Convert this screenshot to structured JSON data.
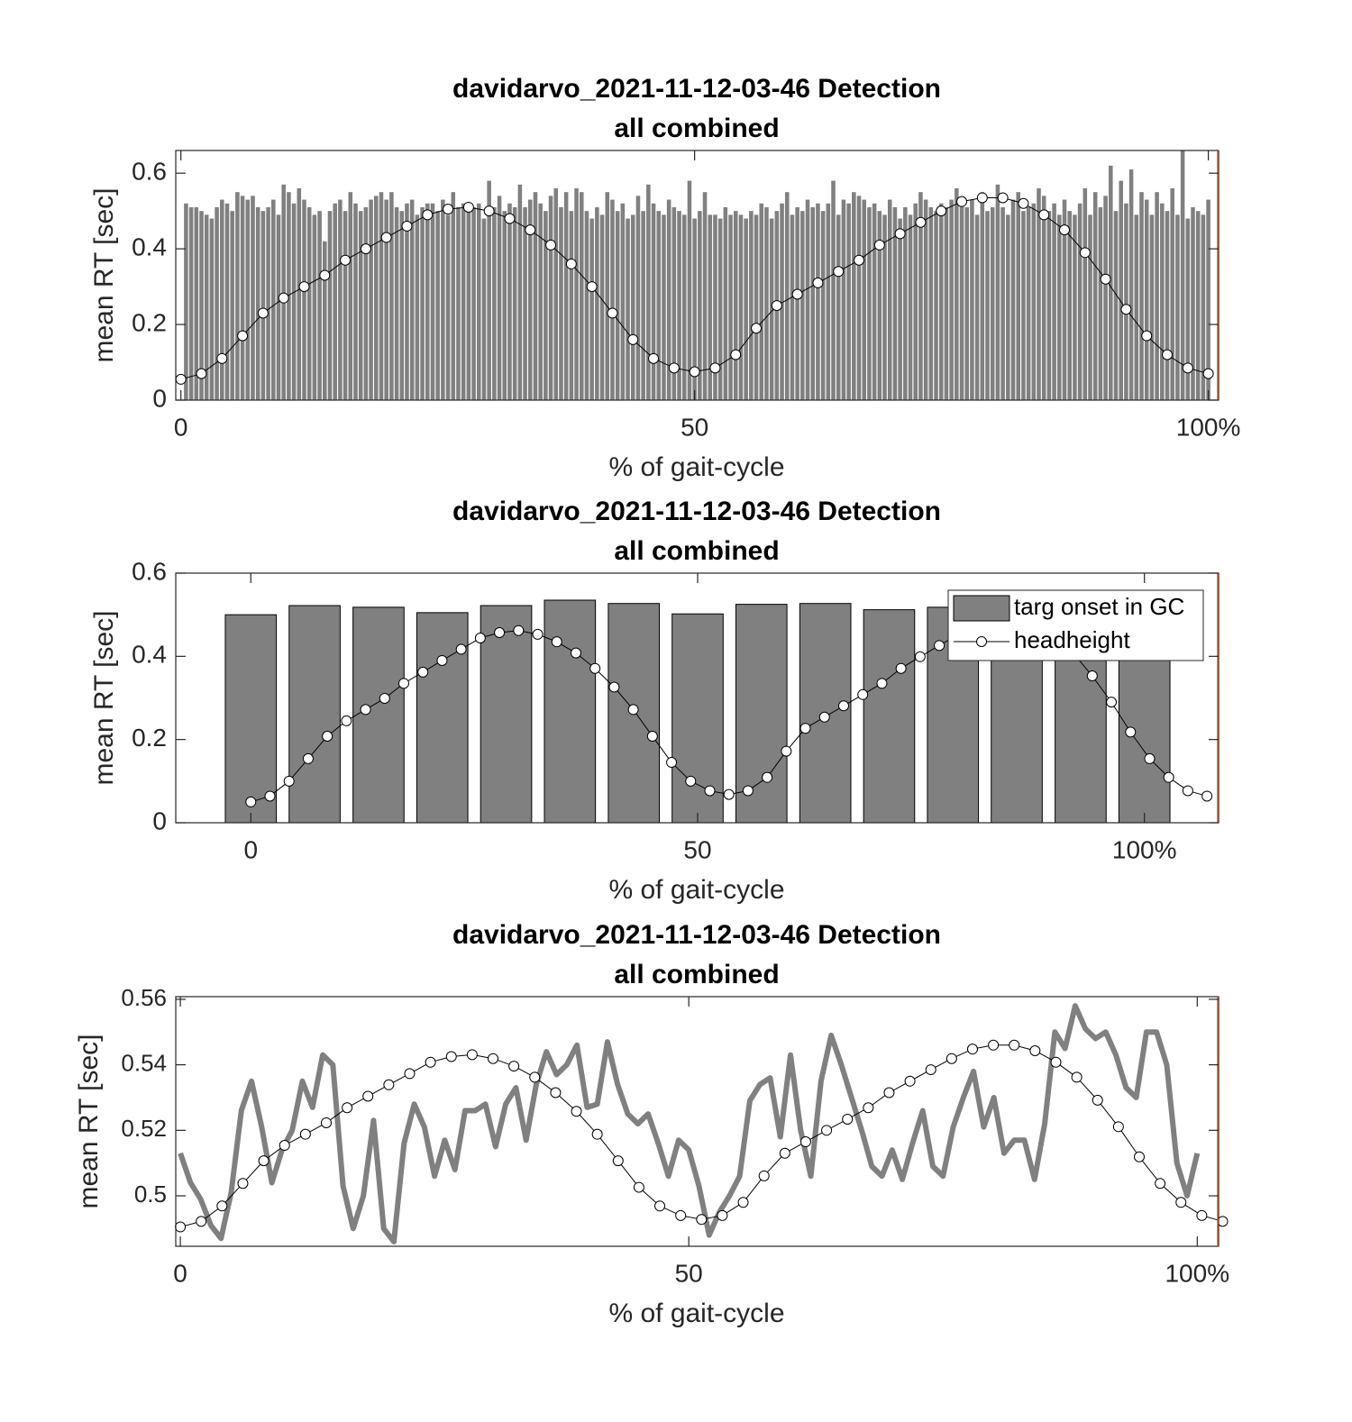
{
  "chart_data": [
    {
      "type": "bar",
      "title": [
        "davidarvo_2021-11-12-03-46 Detection",
        "all combined"
      ],
      "xlabel": "% of gait-cycle",
      "ylabel": "mean RT [sec]",
      "xlim": [
        -0.5,
        101
      ],
      "ylim": [
        0,
        0.66
      ],
      "xticks": [
        0,
        50,
        {
          "value": 100,
          "label": "100%"
        }
      ],
      "yticks": [
        0,
        0.2,
        0.4,
        0.6
      ],
      "series": [
        {
          "type": "bar",
          "color": "#808080",
          "x": [
            0.5,
            1,
            1.5,
            2,
            2.5,
            3,
            3.5,
            4,
            4.5,
            5,
            5.5,
            6,
            6.5,
            7,
            7.5,
            8,
            8.5,
            9,
            9.5,
            10,
            10.5,
            11,
            11.5,
            12,
            12.5,
            13,
            13.5,
            14,
            14.5,
            15,
            15.5,
            16,
            16.5,
            17,
            17.5,
            18,
            18.5,
            19,
            19.5,
            20,
            20.5,
            21,
            21.5,
            22,
            22.5,
            23,
            23.5,
            24,
            24.5,
            25,
            25.5,
            26,
            26.5,
            27,
            27.5,
            28,
            28.5,
            29,
            29.5,
            30,
            30.5,
            31,
            31.5,
            32,
            32.5,
            33,
            33.5,
            34,
            34.5,
            35,
            35.5,
            36,
            36.5,
            37,
            37.5,
            38,
            38.5,
            39,
            39.5,
            40,
            40.5,
            41,
            41.5,
            42,
            42.5,
            43,
            43.5,
            44,
            44.5,
            45,
            45.5,
            46,
            46.5,
            47,
            47.5,
            48,
            48.5,
            49,
            49.5,
            50,
            50.5,
            51,
            51.5,
            52,
            52.5,
            53,
            53.5,
            54,
            54.5,
            55,
            55.5,
            56,
            56.5,
            57,
            57.5,
            58,
            58.5,
            59,
            59.5,
            60,
            60.5,
            61,
            61.5,
            62,
            62.5,
            63,
            63.5,
            64,
            64.5,
            65,
            65.5,
            66,
            66.5,
            67,
            67.5,
            68,
            68.5,
            69,
            69.5,
            70,
            70.5,
            71,
            71.5,
            72,
            72.5,
            73,
            73.5,
            74,
            74.5,
            75,
            75.5,
            76,
            76.5,
            77,
            77.5,
            78,
            78.5,
            79,
            79.5,
            80,
            80.5,
            81,
            81.5,
            82,
            82.5,
            83,
            83.5,
            84,
            84.5,
            85,
            85.5,
            86,
            86.5,
            87,
            87.5,
            88,
            88.5,
            89,
            89.5,
            90,
            90.5,
            91,
            91.5,
            92,
            92.5,
            93,
            93.5,
            94,
            94.5,
            95,
            95.5,
            96,
            96.5,
            97,
            97.5,
            98,
            98.5,
            99,
            99.5,
            100
          ],
          "values": [
            0.52,
            0.51,
            0.51,
            0.5,
            0.49,
            0.48,
            0.51,
            0.53,
            0.52,
            0.5,
            0.55,
            0.54,
            0.53,
            0.54,
            0.51,
            0.5,
            0.51,
            0.53,
            0.49,
            0.57,
            0.55,
            0.52,
            0.56,
            0.53,
            0.51,
            0.49,
            0.5,
            0.42,
            0.5,
            0.52,
            0.53,
            0.5,
            0.55,
            0.52,
            0.5,
            0.51,
            0.53,
            0.54,
            0.55,
            0.53,
            0.55,
            0.51,
            0.5,
            0.52,
            0.53,
            0.49,
            0.51,
            0.52,
            0.52,
            0.5,
            0.53,
            0.49,
            0.55,
            0.51,
            0.52,
            0.5,
            0.51,
            0.52,
            0.48,
            0.58,
            0.51,
            0.54,
            0.5,
            0.52,
            0.51,
            0.57,
            0.51,
            0.53,
            0.55,
            0.52,
            0.5,
            0.54,
            0.56,
            0.51,
            0.55,
            0.5,
            0.56,
            0.55,
            0.5,
            0.48,
            0.51,
            0.49,
            0.55,
            0.53,
            0.5,
            0.52,
            0.48,
            0.49,
            0.54,
            0.5,
            0.57,
            0.52,
            0.5,
            0.49,
            0.53,
            0.51,
            0.5,
            0.49,
            0.58,
            0.48,
            0.5,
            0.55,
            0.49,
            0.49,
            0.48,
            0.51,
            0.49,
            0.5,
            0.49,
            0.48,
            0.5,
            0.49,
            0.52,
            0.51,
            0.48,
            0.5,
            0.52,
            0.55,
            0.49,
            0.51,
            0.5,
            0.53,
            0.51,
            0.52,
            0.5,
            0.52,
            0.58,
            0.49,
            0.53,
            0.52,
            0.55,
            0.54,
            0.53,
            0.51,
            0.52,
            0.5,
            0.49,
            0.53,
            0.51,
            0.48,
            0.51,
            0.49,
            0.52,
            0.55,
            0.53,
            0.51,
            0.5,
            0.52,
            0.51,
            0.53,
            0.56,
            0.52,
            0.51,
            0.53,
            0.49,
            0.55,
            0.5,
            0.51,
            0.57,
            0.51,
            0.49,
            0.53,
            0.55,
            0.5,
            0.51,
            0.52,
            0.56,
            0.54,
            0.5,
            0.52,
            0.49,
            0.53,
            0.5,
            0.49,
            0.52,
            0.56,
            0.49,
            0.55,
            0.51,
            0.54,
            0.62,
            0.5,
            0.58,
            0.52,
            0.61,
            0.49,
            0.55,
            0.53,
            0.49,
            0.55,
            0.52,
            0.5,
            0.56,
            0.49,
            0.66,
            0.48,
            0.51,
            0.5,
            0.49,
            0.53
          ]
        },
        {
          "type": "line",
          "color": "#000000",
          "marker": "o",
          "markerfacecolor": "#ffffff",
          "x": [
            0,
            2,
            4,
            6,
            8,
            10,
            12,
            14,
            16,
            18,
            20,
            22,
            24,
            26,
            28,
            30,
            32,
            34,
            36,
            38,
            40,
            42,
            44,
            46,
            48,
            50,
            52,
            54,
            56,
            58,
            60,
            62,
            64,
            66,
            68,
            70,
            72,
            74,
            76,
            78,
            80,
            82,
            84,
            86,
            88,
            90,
            92,
            94,
            96,
            98,
            100
          ],
          "values": [
            0.055,
            0.07,
            0.11,
            0.17,
            0.23,
            0.27,
            0.3,
            0.33,
            0.37,
            0.4,
            0.43,
            0.46,
            0.49,
            0.505,
            0.51,
            0.5,
            0.48,
            0.45,
            0.41,
            0.36,
            0.3,
            0.23,
            0.16,
            0.11,
            0.085,
            0.075,
            0.085,
            0.12,
            0.19,
            0.25,
            0.28,
            0.31,
            0.34,
            0.37,
            0.41,
            0.44,
            0.47,
            0.5,
            0.525,
            0.535,
            0.535,
            0.52,
            0.49,
            0.45,
            0.39,
            0.32,
            0.24,
            0.17,
            0.12,
            0.085,
            0.07
          ]
        }
      ]
    },
    {
      "type": "bar",
      "title": [
        "davidarvo_2021-11-12-03-46 Detection",
        "all combined"
      ],
      "xlabel": "% of gait-cycle",
      "ylabel": "mean RT [sec]",
      "xlim": [
        -8.4,
        108.3
      ],
      "ylim": [
        0,
        0.6
      ],
      "xticks": [
        0,
        50,
        {
          "value": 100,
          "label": "100%"
        }
      ],
      "yticks": [
        0,
        0.2,
        0.4,
        0.6
      ],
      "legend": "northeast",
      "series": [
        {
          "name": "targ onset in GC",
          "type": "bar",
          "color": "#808080",
          "edgecolor": "#000000",
          "x": [
            0,
            7.14,
            14.29,
            21.43,
            28.57,
            35.71,
            42.86,
            50,
            57.14,
            64.29,
            71.43,
            78.57,
            85.71,
            92.86,
            100
          ],
          "values": [
            0.5,
            0.522,
            0.518,
            0.505,
            0.522,
            0.535,
            0.527,
            0.502,
            0.525,
            0.527,
            0.512,
            0.518,
            0.52,
            0.52,
            0.51
          ]
        },
        {
          "name": "headheight",
          "type": "line",
          "color": "#000000",
          "marker": "o",
          "markerfacecolor": "#ffffff",
          "x": [
            0,
            2.14,
            4.28,
            6.42,
            8.56,
            10.7,
            12.84,
            14.98,
            17.12,
            19.26,
            21.4,
            23.54,
            25.68,
            27.82,
            29.96,
            32.1,
            34.24,
            36.38,
            38.52,
            40.66,
            42.8,
            44.94,
            47.08,
            49.22,
            51.36,
            53.5,
            55.64,
            57.78,
            59.92,
            62.06,
            64.2,
            66.34,
            68.48,
            70.62,
            72.76,
            74.9,
            77.04,
            79.18,
            81.32,
            83.46,
            85.6,
            87.74,
            89.88,
            92.02,
            94.16,
            96.3,
            98.44,
            100.58,
            102.72,
            104.86,
            107
          ],
          "values": [
            0.05,
            0.064,
            0.1,
            0.154,
            0.208,
            0.245,
            0.272,
            0.299,
            0.335,
            0.362,
            0.39,
            0.417,
            0.444,
            0.457,
            0.462,
            0.453,
            0.435,
            0.408,
            0.371,
            0.326,
            0.272,
            0.208,
            0.145,
            0.1,
            0.077,
            0.068,
            0.077,
            0.109,
            0.172,
            0.227,
            0.254,
            0.281,
            0.308,
            0.335,
            0.371,
            0.399,
            0.426,
            0.453,
            0.476,
            0.485,
            0.485,
            0.471,
            0.444,
            0.408,
            0.353,
            0.29,
            0.218,
            0.154,
            0.109,
            0.077,
            0.064
          ]
        }
      ]
    },
    {
      "type": "line",
      "title": [
        "davidarvo_2021-11-12-03-46 Detection",
        "all combined"
      ],
      "xlabel": "% of gait-cycle",
      "ylabel": "mean RT [sec]",
      "xlim": [
        -0.45,
        102.1
      ],
      "ylim": [
        0.4846,
        0.5608
      ],
      "xticks": [
        0,
        50,
        {
          "value": 100,
          "label": "100%"
        }
      ],
      "yticks": [
        0.5,
        0.52,
        0.54,
        0.56
      ],
      "series": [
        {
          "type": "line",
          "color": "#808080",
          "linewidth": 6,
          "x": [
            0,
            1,
            2,
            3,
            4,
            5,
            6,
            7,
            8,
            9,
            10,
            11,
            12,
            13,
            14,
            15,
            16,
            17,
            18,
            19,
            20,
            21,
            22,
            23,
            24,
            25,
            26,
            27,
            28,
            29,
            30,
            31,
            32,
            33,
            34,
            35,
            36,
            37,
            38,
            39,
            40,
            41,
            42,
            43,
            44,
            45,
            46,
            47,
            48,
            49,
            50,
            51,
            52,
            53,
            54,
            55,
            56,
            57,
            58,
            59,
            60,
            61,
            62,
            63,
            64,
            65,
            66,
            67,
            68,
            69,
            70,
            71,
            72,
            73,
            74,
            75,
            76,
            77,
            78,
            79,
            80,
            81,
            82,
            83,
            84,
            85,
            86,
            87,
            88,
            89,
            90,
            91,
            92,
            93,
            94,
            95,
            96,
            97,
            98,
            99,
            100
          ],
          "values": [
            0.513,
            0.504,
            0.499,
            0.491,
            0.487,
            0.501,
            0.526,
            0.535,
            0.521,
            0.504,
            0.514,
            0.52,
            0.535,
            0.527,
            0.543,
            0.54,
            0.503,
            0.49,
            0.5,
            0.523,
            0.49,
            0.486,
            0.516,
            0.528,
            0.521,
            0.506,
            0.517,
            0.508,
            0.526,
            0.526,
            0.528,
            0.515,
            0.528,
            0.533,
            0.517,
            0.534,
            0.544,
            0.537,
            0.54,
            0.546,
            0.527,
            0.528,
            0.547,
            0.534,
            0.525,
            0.522,
            0.525,
            0.516,
            0.506,
            0.517,
            0.514,
            0.503,
            0.488,
            0.495,
            0.5,
            0.506,
            0.529,
            0.534,
            0.536,
            0.518,
            0.543,
            0.52,
            0.506,
            0.535,
            0.549,
            0.54,
            0.53,
            0.52,
            0.509,
            0.506,
            0.514,
            0.505,
            0.516,
            0.526,
            0.509,
            0.506,
            0.521,
            0.53,
            0.538,
            0.521,
            0.53,
            0.513,
            0.517,
            0.517,
            0.505,
            0.522,
            0.55,
            0.545,
            0.558,
            0.551,
            0.548,
            0.55,
            0.543,
            0.533,
            0.53,
            0.55,
            0.55,
            0.54,
            0.51,
            0.5,
            0.513
          ]
        },
        {
          "type": "line",
          "color": "#000000",
          "marker": "o",
          "markerfacecolor": "#ffffff",
          "x": [
            0,
            2.05,
            4.1,
            6.15,
            8.2,
            10.25,
            12.3,
            14.35,
            16.4,
            18.45,
            20.5,
            22.55,
            24.6,
            26.65,
            28.7,
            30.75,
            32.8,
            34.85,
            36.9,
            38.95,
            41,
            43.05,
            45.1,
            47.15,
            49.2,
            51.25,
            53.3,
            55.35,
            57.4,
            59.45,
            61.5,
            63.55,
            65.6,
            67.65,
            69.7,
            71.75,
            73.8,
            75.85,
            77.9,
            79.95,
            82,
            84.05,
            86.1,
            88.15,
            90.2,
            92.25,
            94.3,
            96.35,
            98.4,
            100.45,
            102.5
          ],
          "values": [
            0.4905,
            0.4922,
            0.4969,
            0.5038,
            0.5107,
            0.5154,
            0.5188,
            0.5223,
            0.5269,
            0.5304,
            0.5339,
            0.5373,
            0.5408,
            0.5425,
            0.5431,
            0.5419,
            0.5396,
            0.5362,
            0.5315,
            0.5258,
            0.5188,
            0.5107,
            0.5026,
            0.4969,
            0.494,
            0.4928,
            0.494,
            0.498,
            0.5061,
            0.513,
            0.5165,
            0.52,
            0.5234,
            0.5269,
            0.5315,
            0.535,
            0.5385,
            0.5419,
            0.5448,
            0.546,
            0.546,
            0.5443,
            0.5408,
            0.5362,
            0.5292,
            0.5211,
            0.5119,
            0.5038,
            0.498,
            0.494,
            0.4922
          ]
        }
      ]
    }
  ]
}
